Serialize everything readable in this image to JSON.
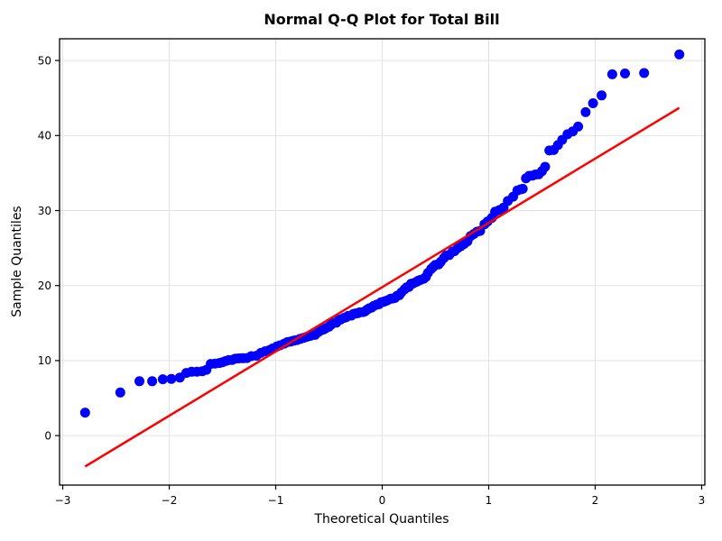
{
  "chart_data": {
    "type": "scatter",
    "subtype": "qq-plot",
    "title": "Normal Q-Q Plot for Total Bill",
    "xlabel": "Theoretical Quantiles",
    "ylabel": "Sample Quantiles",
    "xlim": [
      -3.03,
      3.03
    ],
    "ylim": [
      -6.6,
      52.9
    ],
    "grid": true,
    "legend": "none",
    "x_ticks": [
      -3,
      -2,
      -1,
      0,
      1,
      2,
      3
    ],
    "x_tick_labels": [
      "−3",
      "−2",
      "−1",
      "0",
      "1",
      "2",
      "3"
    ],
    "y_ticks": [
      0,
      10,
      20,
      30,
      40,
      50
    ],
    "y_tick_labels": [
      "0",
      "10",
      "20",
      "30",
      "40",
      "50"
    ],
    "colors": {
      "point": "#0000ff",
      "fit_line": "#ff0000",
      "grid": "#e2e2e2",
      "spine": "#000000",
      "text": "#000000",
      "background": "#ffffff"
    },
    "marker_radius": 5.5,
    "fit_line": {
      "x1": -2.79,
      "y1": -4.12,
      "x2": 2.79,
      "y2": 43.69,
      "slope": 8.57,
      "intercept": 19.79
    },
    "points": [
      [
        -2.79,
        3.07
      ],
      [
        -2.46,
        5.75
      ],
      [
        -2.28,
        7.25
      ],
      [
        -2.16,
        7.25
      ],
      [
        -2.06,
        7.51
      ],
      [
        -1.98,
        7.56
      ],
      [
        -1.9,
        7.74
      ],
      [
        -1.84,
        8.35
      ],
      [
        -1.79,
        8.51
      ],
      [
        -1.74,
        8.52
      ],
      [
        -1.69,
        8.58
      ],
      [
        -1.65,
        8.77
      ],
      [
        -1.61,
        9.55
      ],
      [
        -1.57,
        9.6
      ],
      [
        -1.53,
        9.68
      ],
      [
        -1.5,
        9.78
      ],
      [
        -1.47,
        9.94
      ],
      [
        -1.44,
        10.07
      ],
      [
        -1.41,
        10.09
      ],
      [
        -1.38,
        10.27
      ],
      [
        -1.35,
        10.29
      ],
      [
        -1.32,
        10.33
      ],
      [
        -1.3,
        10.33
      ],
      [
        -1.27,
        10.34
      ],
      [
        -1.23,
        10.59
      ],
      [
        -1.18,
        10.65
      ],
      [
        -1.14,
        11.02
      ],
      [
        -1.1,
        11.24
      ],
      [
        -1.06,
        11.38
      ],
      [
        -1.03,
        11.61
      ],
      [
        -0.99,
        11.87
      ],
      [
        -0.96,
        12.03
      ],
      [
        -0.92,
        12.26
      ],
      [
        -0.89,
        12.46
      ],
      [
        -0.86,
        12.54
      ],
      [
        -0.83,
        12.66
      ],
      [
        -0.8,
        12.74
      ],
      [
        -0.77,
        12.9
      ],
      [
        -0.74,
        13.03
      ],
      [
        -0.71,
        13.16
      ],
      [
        -0.68,
        13.28
      ],
      [
        -0.66,
        13.39
      ],
      [
        -0.63,
        13.42
      ],
      [
        -0.6,
        13.81
      ],
      [
        -0.58,
        14.0
      ],
      [
        -0.55,
        14.15
      ],
      [
        -0.53,
        14.31
      ],
      [
        -0.5,
        14.52
      ],
      [
        -0.48,
        14.78
      ],
      [
        -0.46,
        15.01
      ],
      [
        -0.43,
        15.06
      ],
      [
        -0.41,
        15.38
      ],
      [
        -0.39,
        15.48
      ],
      [
        -0.36,
        15.69
      ],
      [
        -0.34,
        15.77
      ],
      [
        -0.32,
        15.95
      ],
      [
        -0.29,
        16.0
      ],
      [
        -0.27,
        16.21
      ],
      [
        -0.25,
        16.29
      ],
      [
        -0.23,
        16.32
      ],
      [
        -0.21,
        16.43
      ],
      [
        -0.18,
        16.47
      ],
      [
        -0.16,
        16.58
      ],
      [
        -0.14,
        16.82
      ],
      [
        -0.12,
        16.97
      ],
      [
        -0.1,
        17.07
      ],
      [
        -0.08,
        17.29
      ],
      [
        -0.05,
        17.46
      ],
      [
        -0.03,
        17.51
      ],
      [
        -0.01,
        17.78
      ],
      [
        0.01,
        17.82
      ],
      [
        0.03,
        17.92
      ],
      [
        0.05,
        18.04
      ],
      [
        0.08,
        18.24
      ],
      [
        0.1,
        18.28
      ],
      [
        0.12,
        18.35
      ],
      [
        0.14,
        18.64
      ],
      [
        0.16,
        18.71
      ],
      [
        0.18,
        19.08
      ],
      [
        0.21,
        19.49
      ],
      [
        0.23,
        19.77
      ],
      [
        0.25,
        19.82
      ],
      [
        0.27,
        20.23
      ],
      [
        0.29,
        20.29
      ],
      [
        0.32,
        20.49
      ],
      [
        0.34,
        20.65
      ],
      [
        0.36,
        20.76
      ],
      [
        0.39,
        20.92
      ],
      [
        0.41,
        21.16
      ],
      [
        0.43,
        21.7
      ],
      [
        0.46,
        22.23
      ],
      [
        0.48,
        22.49
      ],
      [
        0.5,
        22.75
      ],
      [
        0.53,
        22.82
      ],
      [
        0.55,
        23.17
      ],
      [
        0.58,
        23.68
      ],
      [
        0.6,
        24.01
      ],
      [
        0.63,
        24.08
      ],
      [
        0.66,
        24.52
      ],
      [
        0.68,
        24.59
      ],
      [
        0.71,
        25.0
      ],
      [
        0.74,
        25.28
      ],
      [
        0.77,
        25.56
      ],
      [
        0.8,
        25.89
      ],
      [
        0.83,
        26.59
      ],
      [
        0.86,
        26.88
      ],
      [
        0.89,
        27.18
      ],
      [
        0.92,
        27.28
      ],
      [
        0.96,
        28.17
      ],
      [
        0.99,
        28.55
      ],
      [
        1.03,
        29.03
      ],
      [
        1.06,
        29.85
      ],
      [
        1.1,
        30.06
      ],
      [
        1.14,
        30.4
      ],
      [
        1.18,
        31.27
      ],
      [
        1.23,
        31.85
      ],
      [
        1.27,
        32.68
      ],
      [
        1.3,
        32.83
      ],
      [
        1.32,
        32.9
      ],
      [
        1.35,
        34.3
      ],
      [
        1.38,
        34.63
      ],
      [
        1.41,
        34.65
      ],
      [
        1.44,
        34.81
      ],
      [
        1.47,
        34.83
      ],
      [
        1.5,
        35.26
      ],
      [
        1.53,
        35.83
      ],
      [
        1.57,
        38.01
      ],
      [
        1.61,
        38.07
      ],
      [
        1.65,
        38.73
      ],
      [
        1.69,
        39.42
      ],
      [
        1.74,
        40.17
      ],
      [
        1.79,
        40.55
      ],
      [
        1.84,
        41.19
      ],
      [
        1.91,
        43.11
      ],
      [
        1.98,
        44.3
      ],
      [
        2.06,
        45.35
      ],
      [
        2.16,
        48.17
      ],
      [
        2.28,
        48.27
      ],
      [
        2.46,
        48.33
      ],
      [
        2.79,
        50.81
      ]
    ]
  }
}
